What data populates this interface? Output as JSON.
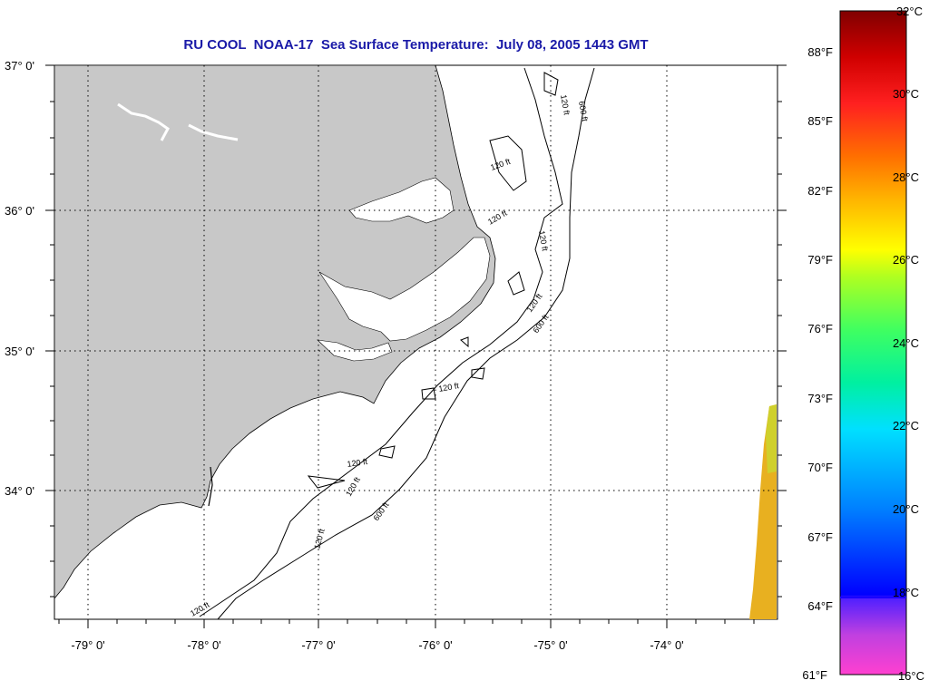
{
  "title": "RU COOL  NOAA-17  Sea Surface Temperature:  July 08, 2005 1443 GMT",
  "map": {
    "lat_labels": [
      "37° 0'",
      "36° 0'",
      "35° 0'",
      "34° 0'"
    ],
    "lon_labels": [
      "-79° 0'",
      "-78° 0'",
      "-77° 0'",
      "-76° 0'",
      "-75° 0'",
      "-74° 0'"
    ],
    "contour_labels": [
      "120 ft",
      "600 ft",
      "120 ft",
      "120 ft",
      "120 ft",
      "120 ft",
      "600 ft",
      "120 ft",
      "120 ft",
      "120 ft",
      "600 ft",
      "120 ft",
      "120 ft"
    ],
    "land_color": "#c8c8c8",
    "sst_fill_color": "#e8b020"
  },
  "colorbar": {
    "fahrenheit_labels": [
      "88°F",
      "85°F",
      "82°F",
      "79°F",
      "76°F",
      "73°F",
      "70°F",
      "67°F",
      "64°F",
      "61°F"
    ],
    "celsius_labels": [
      "32°C",
      "30°C",
      "28°C",
      "26°C",
      "24°C",
      "22°C",
      "20°C",
      "18°C",
      "16°C"
    ],
    "min_c": 16,
    "max_c": 32
  }
}
